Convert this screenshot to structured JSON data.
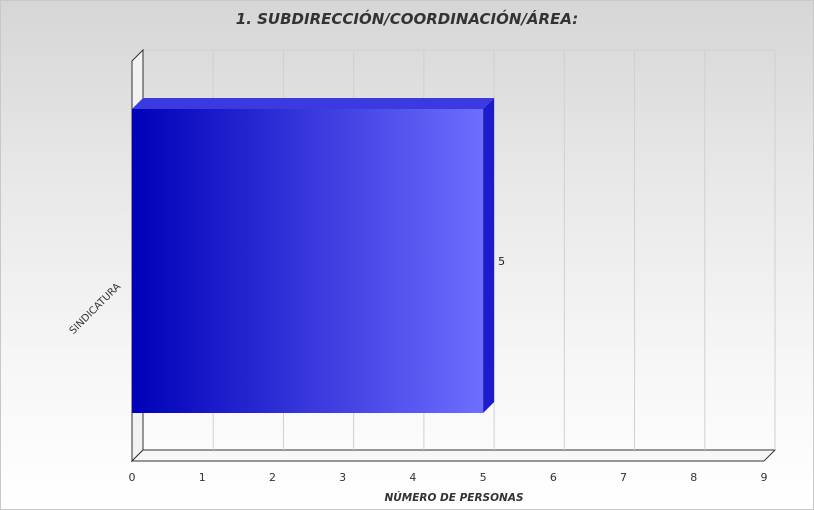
{
  "chart_data": {
    "type": "bar",
    "orientation": "horizontal",
    "three_d": true,
    "title": "1. SUBDIRECCIÓN/COORDINACIÓN/ÁREA:",
    "categories": [
      "SINDICATURA"
    ],
    "values": [
      5
    ],
    "data_labels": [
      "5"
    ],
    "xlabel": "NÚMERO DE PERSONAS",
    "ylabel": "",
    "xlim": [
      0,
      9
    ],
    "x_ticks": [
      "0",
      "1",
      "2",
      "3",
      "4",
      "5",
      "6",
      "7",
      "8",
      "9"
    ],
    "grid": true,
    "legend": "none",
    "colors": {
      "bar_dark": "#0000b8",
      "bar_light": "#6e6eff",
      "bar_side": "#1c1ccc",
      "bar_top": "#3a3ae0"
    }
  }
}
